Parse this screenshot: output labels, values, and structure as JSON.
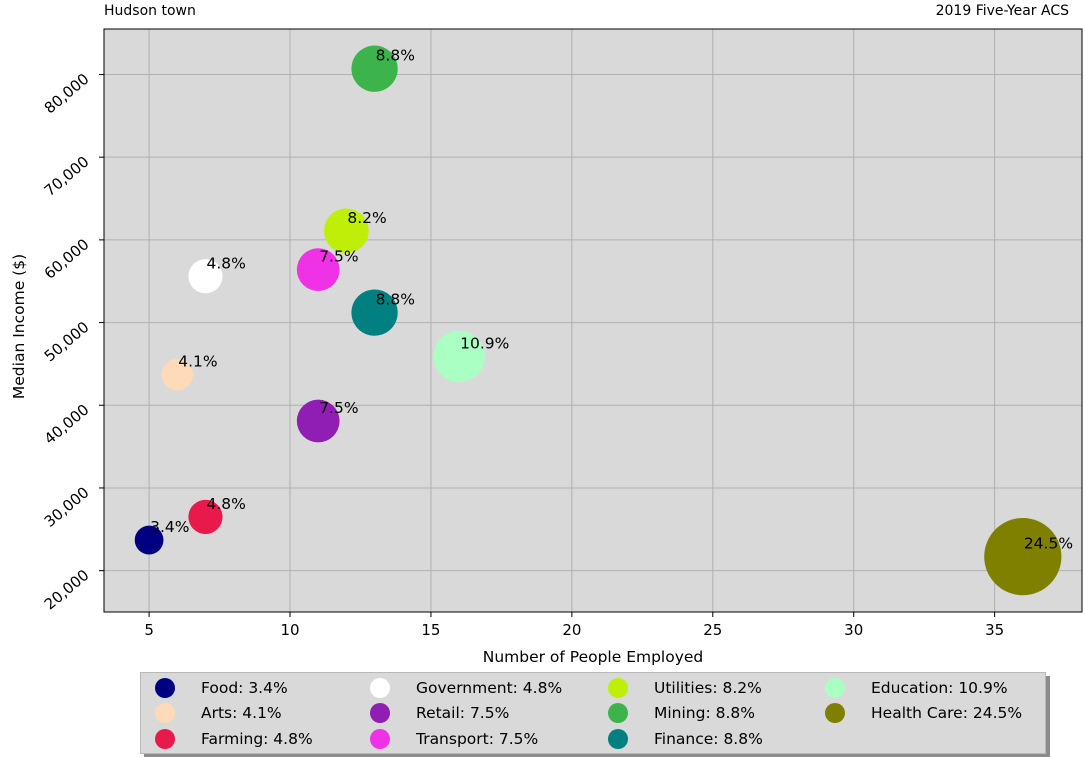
{
  "header": {
    "left": "Hudson town",
    "right": "2019 Five-Year ACS"
  },
  "chart_data": {
    "type": "scatter",
    "xlabel": "Number of People Employed",
    "ylabel": "Median Income ($)",
    "xlim": [
      3.4,
      38.1
    ],
    "ylim": [
      15000,
      85500
    ],
    "xticks": [
      5,
      10,
      15,
      20,
      25,
      30,
      35
    ],
    "yticks": [
      20000,
      30000,
      40000,
      50000,
      60000,
      70000,
      80000
    ],
    "ytick_labels": [
      "20,000",
      "30,000",
      "40,000",
      "50,000",
      "60,000",
      "70,000",
      "80,000"
    ],
    "grid": true,
    "legend_position": "bottom",
    "points": [
      {
        "name": "Food",
        "x": 5,
        "y": 23700,
        "share": 3.4,
        "label": "3.4%",
        "legend": "Food: 3.4%",
        "color": "#000080"
      },
      {
        "name": "Arts",
        "x": 6,
        "y": 43700,
        "share": 4.1,
        "label": "4.1%",
        "legend": "Arts: 4.1%",
        "color": "#ffdab9"
      },
      {
        "name": "Farming",
        "x": 7,
        "y": 26500,
        "share": 4.8,
        "label": "4.8%",
        "legend": "Farming: 4.8%",
        "color": "#e8194b"
      },
      {
        "name": "Government",
        "x": 7,
        "y": 55600,
        "share": 4.8,
        "label": "4.8%",
        "legend": "Government: 4.8%",
        "color": "#ffffff"
      },
      {
        "name": "Retail",
        "x": 11,
        "y": 38100,
        "share": 7.5,
        "label": "7.5%",
        "legend": "Retail: 7.5%",
        "color": "#911eb4"
      },
      {
        "name": "Transport",
        "x": 11,
        "y": 56400,
        "share": 7.5,
        "label": "7.5%",
        "legend": "Transport: 7.5%",
        "color": "#f032e6"
      },
      {
        "name": "Utilities",
        "x": 12,
        "y": 61100,
        "share": 8.2,
        "label": "8.2%",
        "legend": "Utilities: 8.2%",
        "color": "#bfef08"
      },
      {
        "name": "Mining",
        "x": 13,
        "y": 80700,
        "share": 8.8,
        "label": "8.8%",
        "legend": "Mining: 8.8%",
        "color": "#3cb44b"
      },
      {
        "name": "Finance",
        "x": 13,
        "y": 51200,
        "share": 8.8,
        "label": "8.8%",
        "legend": "Finance: 8.8%",
        "color": "#008080"
      },
      {
        "name": "Education",
        "x": 16,
        "y": 45900,
        "share": 10.9,
        "label": "10.9%",
        "legend": "Education: 10.9%",
        "color": "#aaffc3"
      },
      {
        "name": "Health Care",
        "x": 36,
        "y": 21700,
        "share": 24.5,
        "label": "24.5%",
        "legend": "Health Care: 24.5%",
        "color": "#808000"
      }
    ]
  }
}
